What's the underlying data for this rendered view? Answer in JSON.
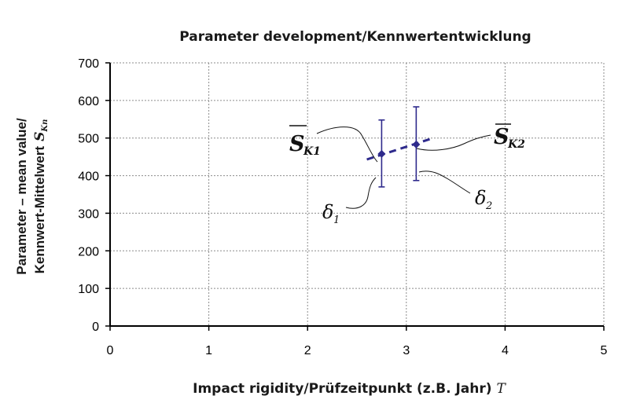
{
  "chart_data": {
    "type": "scatter",
    "title": "Parameter development/Kennwertentwicklung",
    "xlabel_text": "Impact rigidity/Prüfzeitpunkt (z.B. Jahr)",
    "xlabel_symbol": "T",
    "ylabel_line1": "Parameter – mean value/",
    "ylabel_line2_text": "Kennwert-Mittelwert",
    "ylabel_symbol": "S",
    "ylabel_symbol_sub": "Kn",
    "xlim": [
      0,
      5
    ],
    "ylim": [
      0,
      700
    ],
    "xticks": [
      "0",
      "1",
      "2",
      "3",
      "4",
      "5"
    ],
    "yticks": [
      "0",
      "100",
      "200",
      "300",
      "400",
      "500",
      "600",
      "700"
    ],
    "grid": true,
    "points": [
      {
        "x": 2.75,
        "y": 458,
        "err_low": 370,
        "err_high": 548
      },
      {
        "x": 3.1,
        "y": 483,
        "err_low": 387,
        "err_high": 583
      }
    ],
    "trend_line": {
      "x": [
        2.6,
        3.25
      ],
      "y": [
        443,
        498
      ]
    },
    "annotations": {
      "sk1_main": "S",
      "sk1_sub": "K1",
      "sk2_main": "S",
      "sk2_sub": "K2",
      "delta1_main": "δ",
      "delta1_sub": "1",
      "delta2_main": "δ",
      "delta2_sub": "2"
    },
    "colors": {
      "series": "#2e2a8c",
      "axes": "#000000",
      "grid": "#8c8c8c"
    }
  }
}
